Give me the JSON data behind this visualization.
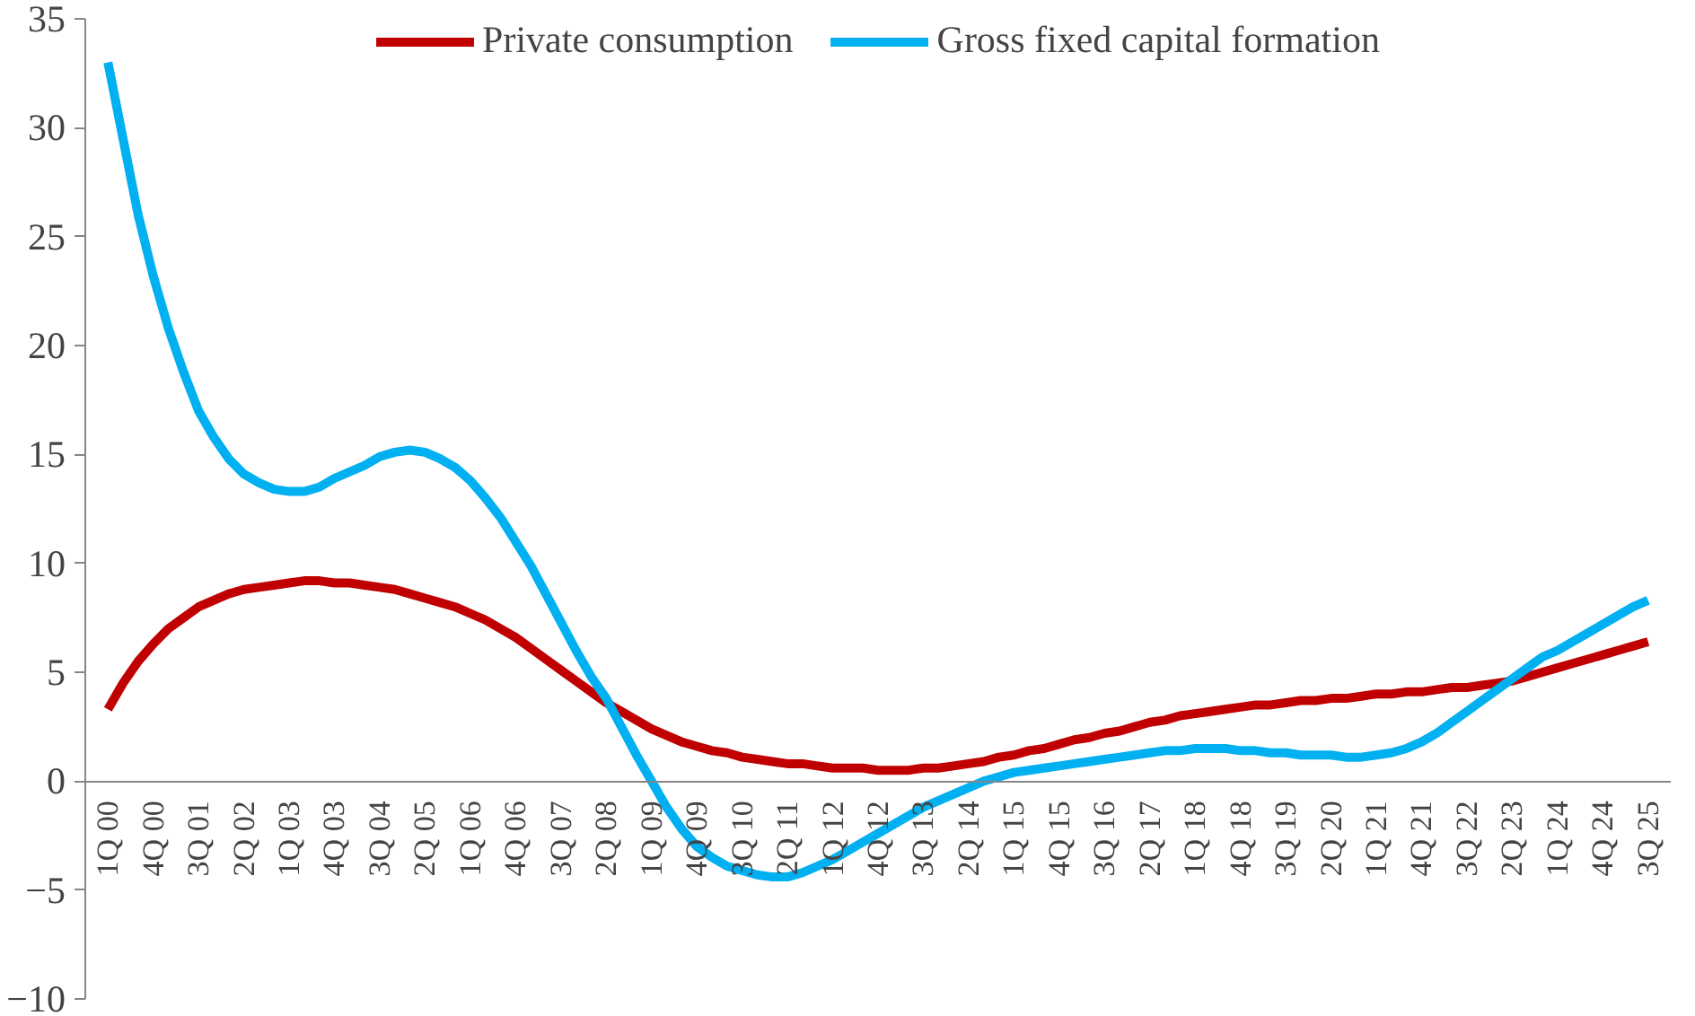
{
  "chart_data": {
    "type": "line",
    "categories": [
      "1Q 00",
      null,
      null,
      "4Q 00",
      null,
      null,
      "3Q 01",
      null,
      null,
      "2Q 02",
      null,
      null,
      "1Q 03",
      null,
      null,
      "4Q 03",
      null,
      null,
      "3Q 04",
      null,
      null,
      "2Q 05",
      null,
      null,
      "1Q 06",
      null,
      null,
      "4Q 06",
      null,
      null,
      "3Q 07",
      null,
      null,
      "2Q 08",
      null,
      null,
      "1Q 09",
      null,
      null,
      "4Q 09",
      null,
      null,
      "3Q 10",
      null,
      null,
      "2Q 11",
      null,
      null,
      "1Q 12",
      null,
      null,
      "4Q 12",
      null,
      null,
      "3Q 13",
      null,
      null,
      "2Q 14",
      null,
      null,
      "1Q 15",
      null,
      null,
      "4Q 15",
      null,
      null,
      "3Q 16",
      null,
      null,
      "2Q 17",
      null,
      null,
      "1Q 18",
      null,
      null,
      "4Q 18",
      null,
      null,
      "3Q 19",
      null,
      null,
      "2Q 20",
      null,
      null,
      "1Q 21",
      null,
      null,
      "4Q 21",
      null,
      null,
      "3Q 22",
      null,
      null,
      "2Q 23",
      null,
      null,
      "1Q 24",
      null,
      null,
      "4Q 24",
      null,
      null,
      "3Q 25"
    ],
    "series": [
      {
        "name": "Private consumption",
        "color": "#c00000",
        "values": [
          3.3,
          4.5,
          5.5,
          6.3,
          7.0,
          7.5,
          8.0,
          8.3,
          8.6,
          8.8,
          8.9,
          9.0,
          9.1,
          9.2,
          9.2,
          9.1,
          9.1,
          9.0,
          8.9,
          8.8,
          8.6,
          8.4,
          8.2,
          8.0,
          7.7,
          7.4,
          7.0,
          6.6,
          6.1,
          5.6,
          5.1,
          4.6,
          4.1,
          3.6,
          3.2,
          2.8,
          2.4,
          2.1,
          1.8,
          1.6,
          1.4,
          1.3,
          1.1,
          1.0,
          0.9,
          0.8,
          0.8,
          0.7,
          0.6,
          0.6,
          0.6,
          0.5,
          0.5,
          0.5,
          0.6,
          0.6,
          0.7,
          0.8,
          0.9,
          1.1,
          1.2,
          1.4,
          1.5,
          1.7,
          1.9,
          2.0,
          2.2,
          2.3,
          2.5,
          2.7,
          2.8,
          3.0,
          3.1,
          3.2,
          3.3,
          3.4,
          3.5,
          3.5,
          3.6,
          3.7,
          3.7,
          3.8,
          3.8,
          3.9,
          4.0,
          4.0,
          4.1,
          4.1,
          4.2,
          4.3,
          4.3,
          4.4,
          4.5,
          4.6,
          4.8,
          5.0,
          5.2,
          5.4,
          5.6,
          5.8,
          6.0,
          6.2,
          6.4
        ]
      },
      {
        "name": "Gross fixed capital formation",
        "color": "#00b0f0",
        "values": [
          33,
          29.5,
          26,
          23.2,
          20.8,
          18.8,
          17.0,
          15.8,
          14.8,
          14.1,
          13.7,
          13.4,
          13.3,
          13.3,
          13.5,
          13.9,
          14.2,
          14.5,
          14.9,
          15.1,
          15.2,
          15.1,
          14.8,
          14.4,
          13.8,
          13.0,
          12.1,
          11.0,
          9.9,
          8.6,
          7.3,
          6.0,
          4.8,
          3.8,
          2.5,
          1.2,
          0,
          -1.2,
          -2.2,
          -3.0,
          -3.5,
          -3.9,
          -4.1,
          -4.3,
          -4.4,
          -4.4,
          -4.2,
          -3.9,
          -3.6,
          -3.2,
          -2.8,
          -2.4,
          -2.0,
          -1.6,
          -1.2,
          -0.9,
          -0.6,
          -0.3,
          0,
          0.2,
          0.4,
          0.5,
          0.6,
          0.7,
          0.8,
          0.9,
          1.0,
          1.1,
          1.2,
          1.3,
          1.4,
          1.4,
          1.5,
          1.5,
          1.5,
          1.4,
          1.4,
          1.3,
          1.3,
          1.2,
          1.2,
          1.2,
          1.1,
          1.1,
          1.2,
          1.3,
          1.5,
          1.8,
          2.2,
          2.7,
          3.2,
          3.7,
          4.2,
          4.7,
          5.2,
          5.7,
          6.0,
          6.4,
          6.8,
          7.2,
          7.6,
          8.0,
          8.3
        ]
      }
    ],
    "ylim": [
      -10,
      35
    ],
    "yticks": [
      -10,
      -5,
      0,
      5,
      10,
      15,
      20,
      25,
      30,
      35
    ],
    "grid": false,
    "legend": "top",
    "line_style": "solid",
    "marker": "none"
  }
}
